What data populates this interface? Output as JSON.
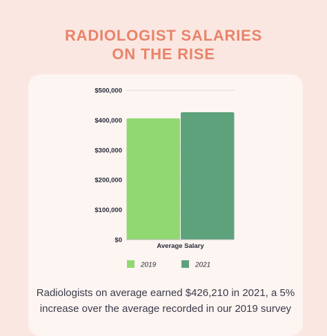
{
  "header": {
    "title_line1": "RADIOLOGIST SALARIES",
    "title_line2": "ON THE RISE"
  },
  "caption": "Radiologists on average earned $426,210 in 2021, a 5% increase over the average recorded in our 2019 survey",
  "colors": {
    "title": "#e8836a",
    "series_2019": "#92d872",
    "series_2021": "#5ea27c",
    "axis_text": "#262a3b",
    "grid": "#dcdcdc"
  },
  "chart_data": {
    "type": "bar",
    "categories": [
      "Average Salary"
    ],
    "series": [
      {
        "name": "2019",
        "values": [
          405914
        ],
        "color": "#92d872"
      },
      {
        "name": "2021",
        "values": [
          426210
        ],
        "color": "#5ea27c"
      }
    ],
    "ylim": [
      0,
      500000
    ],
    "yticks": [
      0,
      100000,
      200000,
      300000,
      400000,
      500000
    ],
    "ytick_labels": [
      "$0",
      "$100,000",
      "$200,000",
      "$300,000",
      "$400,000",
      "$500,000"
    ],
    "xlabel": "",
    "ylabel": "",
    "grid": true,
    "legend": "bottom-center"
  }
}
